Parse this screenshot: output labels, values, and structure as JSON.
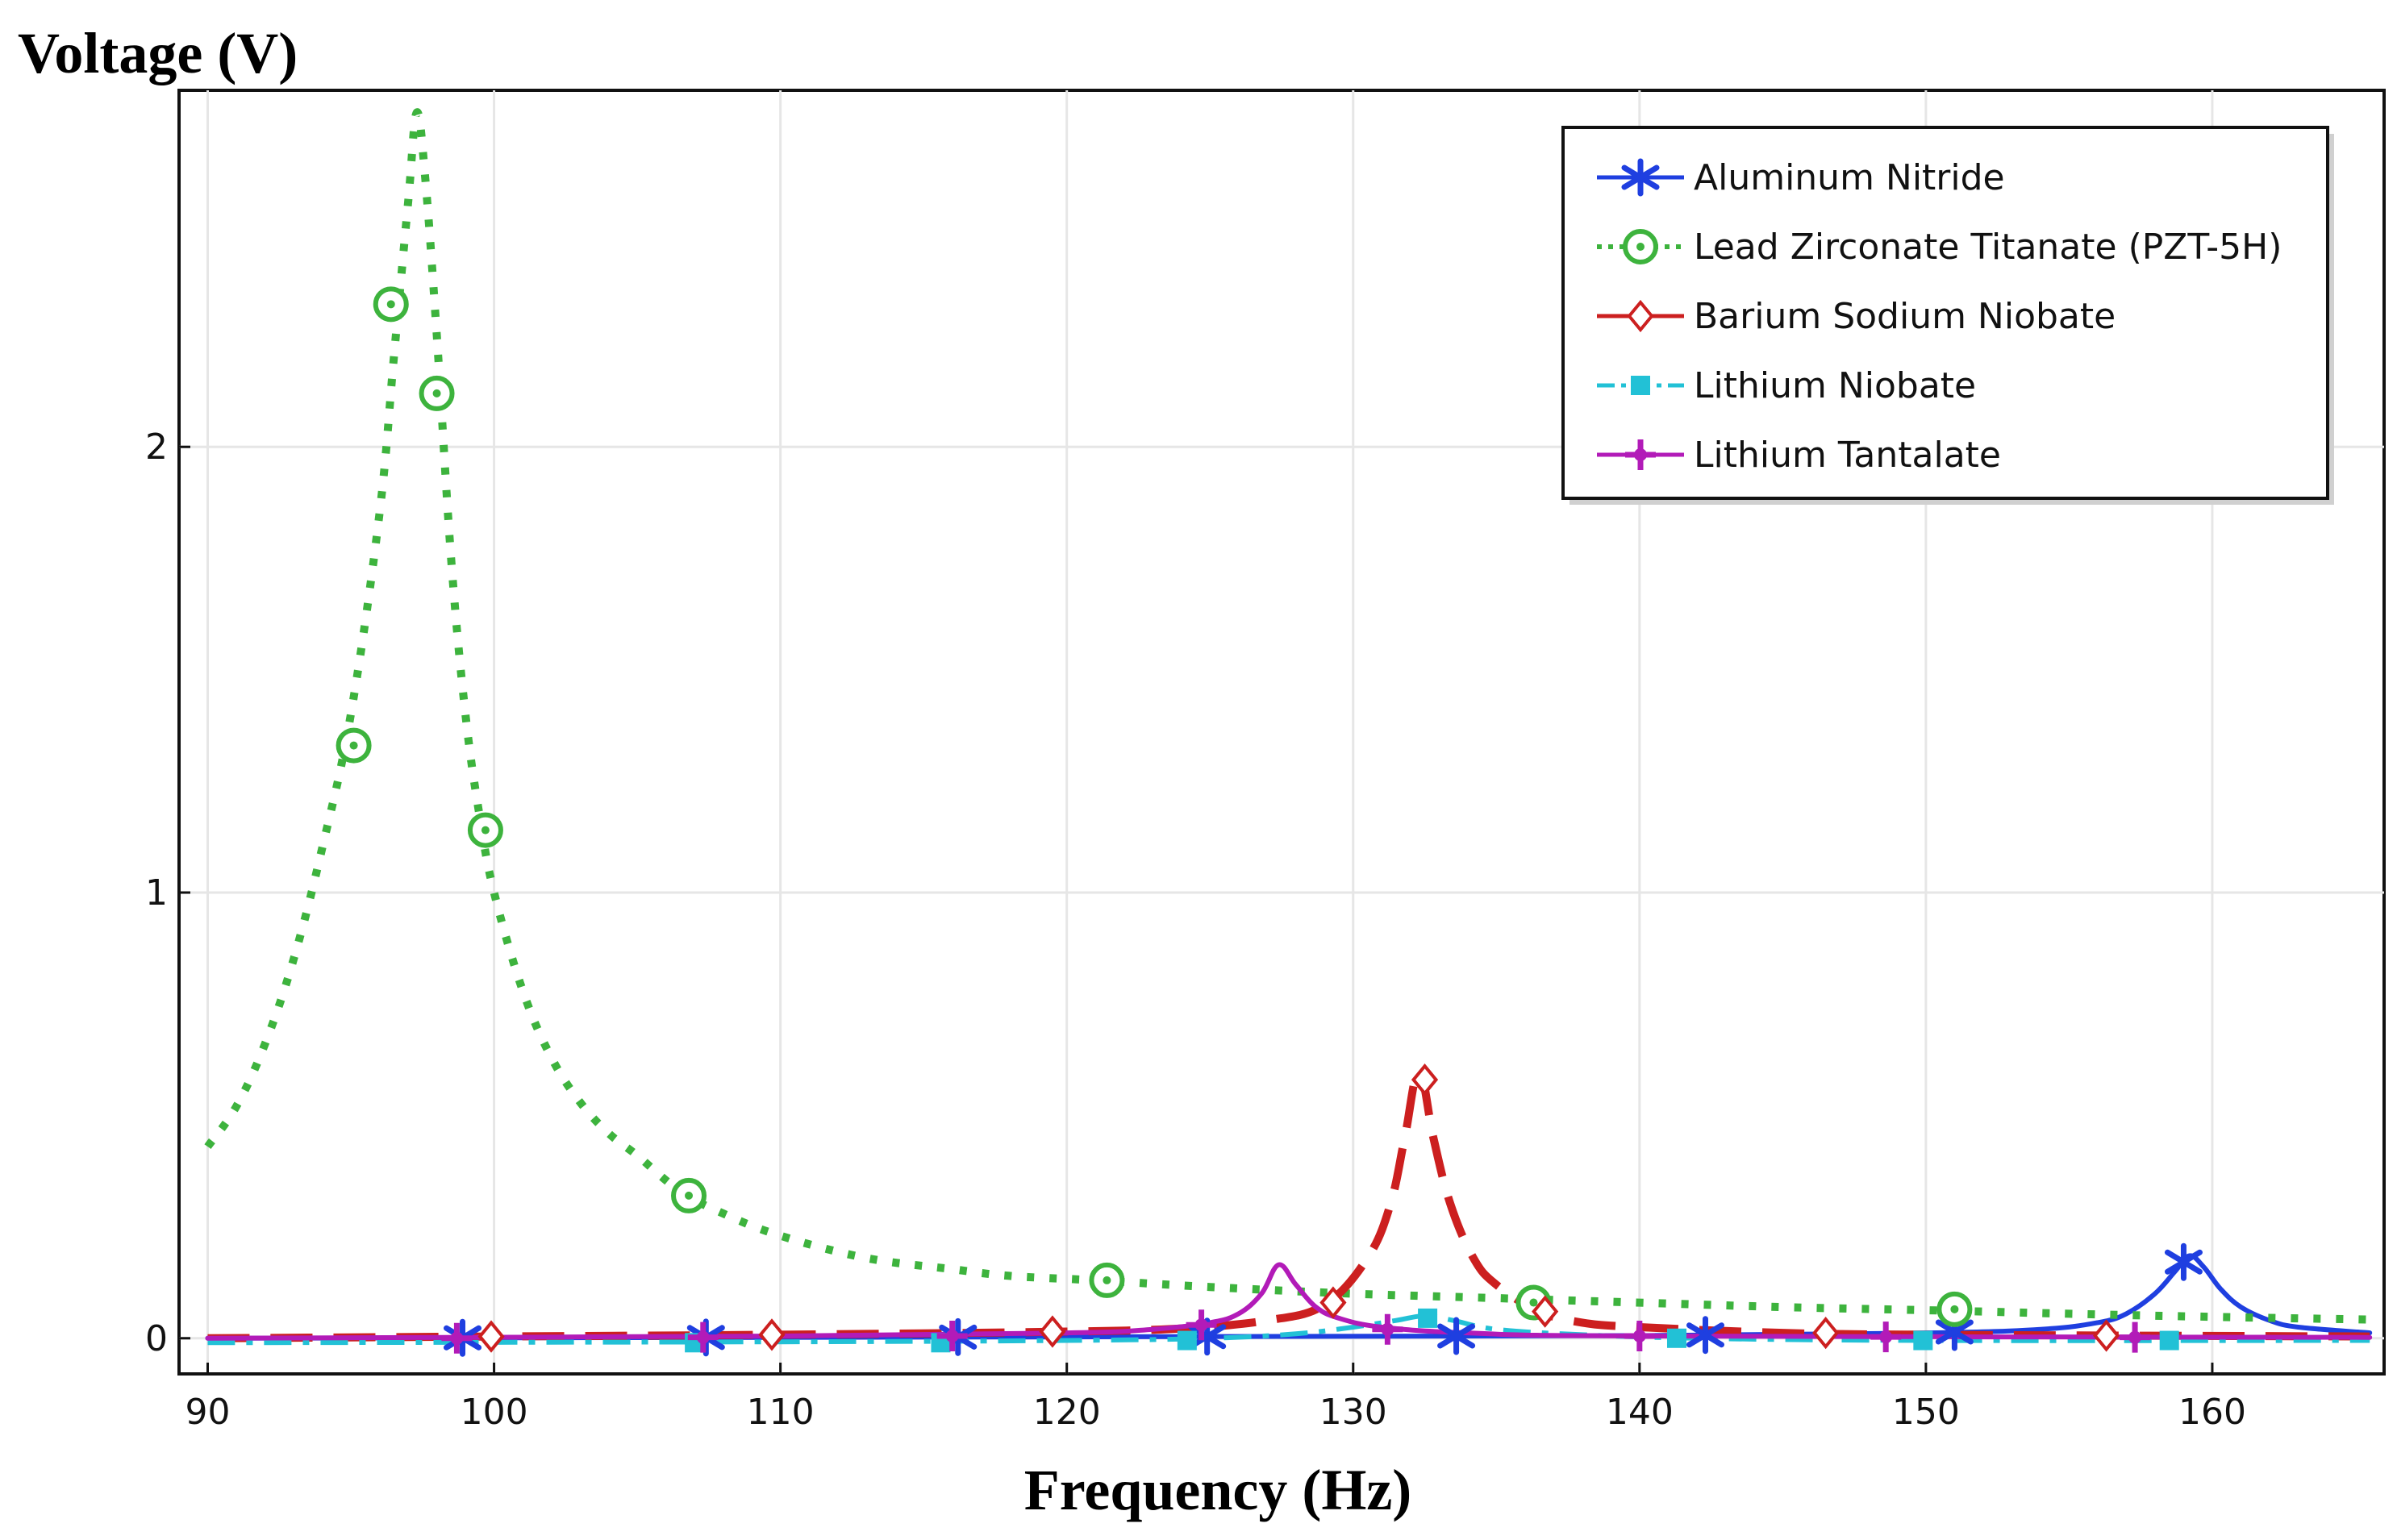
{
  "chart_data": {
    "type": "line",
    "title": "",
    "xlabel": "Frequency (Hz)",
    "ylabel": "Voltage (V)",
    "xlim": [
      89,
      166
    ],
    "ylim": [
      -0.08,
      2.8
    ],
    "x_ticks": [
      90,
      100,
      110,
      120,
      130,
      140,
      150,
      160
    ],
    "y_ticks": [
      0,
      1,
      2
    ],
    "grid": true,
    "legend_position": "top-right",
    "series": [
      {
        "name": "Aluminum Nitride",
        "color": "#1f3fe0",
        "line_style": "solid",
        "marker": "asterisk",
        "points": [
          [
            90,
            0
          ],
          [
            120,
            0.003
          ],
          [
            140,
            0.006
          ],
          [
            150,
            0.012
          ],
          [
            154,
            0.02
          ],
          [
            156,
            0.035
          ],
          [
            157,
            0.055
          ],
          [
            158,
            0.1
          ],
          [
            158.7,
            0.15
          ],
          [
            159.2,
            0.185
          ],
          [
            159.7,
            0.16
          ],
          [
            160.3,
            0.11
          ],
          [
            161,
            0.07
          ],
          [
            162,
            0.04
          ],
          [
            163,
            0.025
          ],
          [
            165.5,
            0.012
          ]
        ],
        "marker_x": [
          98.9,
          107.4,
          116.2,
          124.9,
          133.6,
          142.3,
          151.0,
          159.0
        ]
      },
      {
        "name": "Lead Zirconate Titanate (PZT-5H)",
        "color": "#3db33d",
        "line_style": "dotted",
        "marker": "circle-dot",
        "points": [
          [
            90,
            0.43
          ],
          [
            91,
            0.52
          ],
          [
            92,
            0.66
          ],
          [
            93,
            0.85
          ],
          [
            94,
            1.1
          ],
          [
            95,
            1.4
          ],
          [
            96,
            1.85
          ],
          [
            96.5,
            2.2
          ],
          [
            97,
            2.55
          ],
          [
            97.3,
            2.75
          ],
          [
            97.6,
            2.6
          ],
          [
            98,
            2.25
          ],
          [
            98.5,
            1.75
          ],
          [
            99,
            1.4
          ],
          [
            99.5,
            1.17
          ],
          [
            100,
            1.0
          ],
          [
            101,
            0.78
          ],
          [
            102,
            0.63
          ],
          [
            103,
            0.53
          ],
          [
            104,
            0.46
          ],
          [
            105,
            0.41
          ],
          [
            106.5,
            0.33
          ],
          [
            108,
            0.28
          ],
          [
            110,
            0.23
          ],
          [
            113,
            0.18
          ],
          [
            116,
            0.155
          ],
          [
            118,
            0.14
          ],
          [
            121,
            0.13
          ],
          [
            125,
            0.115
          ],
          [
            130,
            0.1
          ],
          [
            135,
            0.09
          ],
          [
            140,
            0.08
          ],
          [
            145,
            0.07
          ],
          [
            150,
            0.063
          ],
          [
            155,
            0.055
          ],
          [
            160,
            0.048
          ],
          [
            165.5,
            0.042
          ]
        ],
        "marker_x": [
          95.1,
          96.4,
          98.0,
          99.7,
          106.8,
          121.4,
          136.3,
          151.0
        ],
        "marker_y": [
          1.33,
          2.32,
          2.12,
          1.14,
          0.32,
          0.13,
          0.08,
          0.065
        ]
      },
      {
        "name": "Barium Sodium Niobate",
        "color": "#cc1f1f",
        "line_style": "dashed",
        "marker": "diamond",
        "points": [
          [
            90,
            0
          ],
          [
            100,
            0.004
          ],
          [
            110,
            0.008
          ],
          [
            120,
            0.015
          ],
          [
            124,
            0.022
          ],
          [
            127,
            0.04
          ],
          [
            129,
            0.075
          ],
          [
            130.5,
            0.18
          ],
          [
            131.3,
            0.3
          ],
          [
            131.8,
            0.45
          ],
          [
            132.3,
            0.6
          ],
          [
            132.8,
            0.45
          ],
          [
            133.4,
            0.3
          ],
          [
            134.2,
            0.18
          ],
          [
            135,
            0.12
          ],
          [
            136.5,
            0.06
          ],
          [
            138,
            0.035
          ],
          [
            140,
            0.025
          ],
          [
            145,
            0.012
          ],
          [
            150,
            0.008
          ],
          [
            165.5,
            0.004
          ]
        ],
        "marker_x": [
          99.9,
          109.7,
          119.5,
          129.3,
          132.5,
          136.7,
          146.5,
          156.3
        ],
        "marker_y": [
          0.004,
          0.008,
          0.015,
          0.08,
          0.58,
          0.06,
          0.012,
          0.006
        ]
      },
      {
        "name": "Lithium Niobate",
        "color": "#22c1d6",
        "line_style": "dash-dot",
        "marker": "square",
        "points": [
          [
            90,
            -0.01
          ],
          [
            110,
            -0.008
          ],
          [
            120,
            -0.005
          ],
          [
            125,
            0.0
          ],
          [
            128,
            0.01
          ],
          [
            130,
            0.025
          ],
          [
            131.5,
            0.04
          ],
          [
            132.5,
            0.05
          ],
          [
            133.5,
            0.04
          ],
          [
            135,
            0.02
          ],
          [
            138,
            0.008
          ],
          [
            142,
            0.0
          ],
          [
            150,
            -0.005
          ],
          [
            165.5,
            -0.005
          ]
        ],
        "marker_x": [
          107.0,
          115.6,
          124.2,
          132.6,
          141.3,
          149.9,
          158.5
        ],
        "marker_y": [
          -0.01,
          -0.01,
          -0.005,
          0.045,
          0.0,
          -0.005,
          -0.005
        ]
      },
      {
        "name": "Lithium Tantalate",
        "color": "#b21bb8",
        "line_style": "solid",
        "marker": "plus",
        "points": [
          [
            90,
            0.0
          ],
          [
            110,
            0.005
          ],
          [
            120,
            0.012
          ],
          [
            123,
            0.02
          ],
          [
            125,
            0.035
          ],
          [
            126,
            0.055
          ],
          [
            126.8,
            0.1
          ],
          [
            127.4,
            0.165
          ],
          [
            128,
            0.12
          ],
          [
            128.7,
            0.07
          ],
          [
            129.5,
            0.045
          ],
          [
            131,
            0.025
          ],
          [
            134,
            0.012
          ],
          [
            140,
            0.005
          ],
          [
            165.5,
            0.002
          ]
        ],
        "marker_x": [
          98.7,
          107.3,
          116.0,
          124.7,
          131.2,
          140.0,
          148.6,
          157.3
        ],
        "marker_y": [
          0.0,
          0.002,
          0.005,
          0.03,
          0.02,
          0.005,
          0.003,
          0.002
        ]
      }
    ]
  }
}
